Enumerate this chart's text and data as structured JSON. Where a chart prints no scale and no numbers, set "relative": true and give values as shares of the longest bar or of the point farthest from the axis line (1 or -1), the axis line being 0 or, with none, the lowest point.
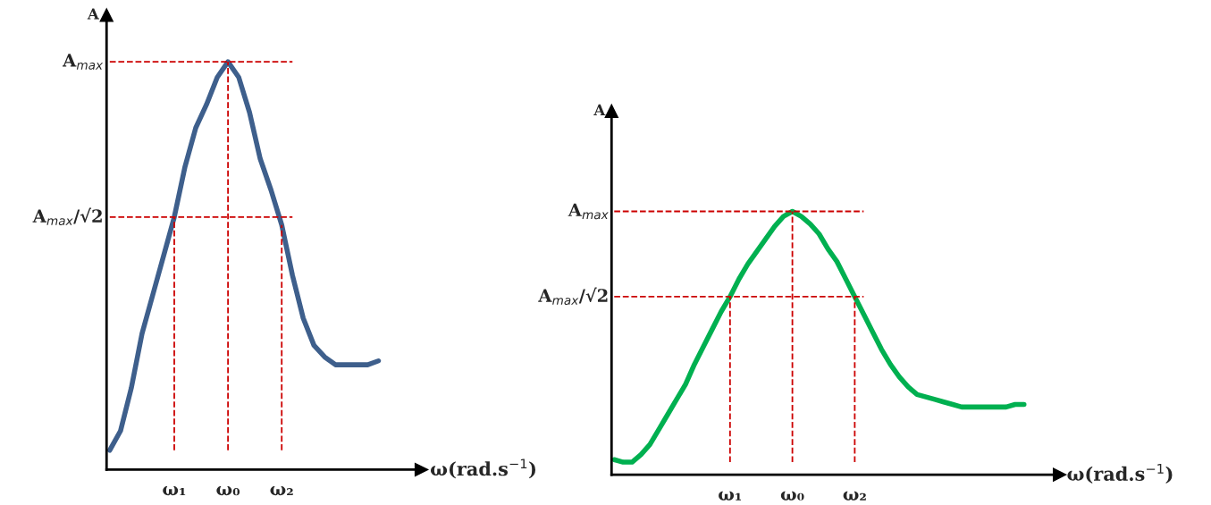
{
  "chart_data": [
    {
      "type": "line",
      "relative": true,
      "ylabel": "A",
      "xlabel": "ω(rad.s$^{−1}$)",
      "categories": [
        null,
        null,
        null,
        null,
        null,
        null,
        "ω₁",
        null,
        null,
        null,
        null,
        "ω₀",
        null,
        null,
        null,
        null,
        "ω₂",
        null,
        null,
        null,
        null,
        null,
        null,
        null,
        null,
        null
      ],
      "series": [
        {
          "color": "#3e5f8c",
          "values": [
            0,
            0.05,
            0.16,
            0.3,
            0.4,
            0.5,
            0.6,
            0.73,
            0.83,
            0.89,
            0.96,
            1.0,
            0.96,
            0.87,
            0.75,
            0.67,
            0.58,
            0.45,
            0.34,
            0.27,
            0.24,
            0.22,
            0.22,
            0.22,
            0.22,
            0.23
          ]
        }
      ],
      "ref_lines": [
        {
          "axis": "y",
          "value": 1,
          "label": "A$_{max}$",
          "color": "#cc0000",
          "line_style": "dashed"
        },
        {
          "axis": "y",
          "value": 0.6,
          "label": "A$_{max}$/√2",
          "color": "#cc0000",
          "line_style": "dashed"
        },
        {
          "axis": "x",
          "value": "ω₁",
          "color": "#cc0000",
          "line_style": "dashed"
        },
        {
          "axis": "x",
          "value": "ω₀",
          "color": "#cc0000",
          "line_style": "dashed"
        },
        {
          "axis": "x",
          "value": "ω₂",
          "color": "#cc0000",
          "line_style": "dashed"
        }
      ],
      "grid": false,
      "line_style": "solid",
      "marker": "none"
    },
    {
      "type": "line",
      "relative": true,
      "ylabel": "A",
      "xlabel": "ω(rad.s$^{−1}$)",
      "categories": [
        null,
        null,
        null,
        null,
        null,
        null,
        null,
        null,
        null,
        null,
        null,
        null,
        null,
        "ω₁",
        null,
        null,
        null,
        null,
        null,
        null,
        "ω₀",
        null,
        null,
        null,
        null,
        null,
        null,
        "ω₂",
        null,
        null,
        null,
        null,
        null,
        null,
        null,
        null,
        null,
        null,
        null,
        null,
        null,
        null,
        null,
        null,
        null,
        null,
        null
      ],
      "series": [
        {
          "color": "#00b050",
          "values": [
            0.01,
            0,
            0,
            0.03,
            0.07,
            0.13,
            0.19,
            0.25,
            0.31,
            0.39,
            0.46,
            0.53,
            0.6,
            0.66,
            0.73,
            0.79,
            0.84,
            0.89,
            0.94,
            0.98,
            1.0,
            0.98,
            0.95,
            0.91,
            0.85,
            0.8,
            0.73,
            0.66,
            0.59,
            0.52,
            0.45,
            0.39,
            0.34,
            0.3,
            0.27,
            0.26,
            0.25,
            0.24,
            0.23,
            0.22,
            0.22,
            0.22,
            0.22,
            0.22,
            0.22,
            0.23,
            0.23
          ]
        }
      ],
      "ref_lines": [
        {
          "axis": "y",
          "value": 1,
          "label": "A$_{max}$",
          "color": "#cc0000",
          "line_style": "dashed"
        },
        {
          "axis": "y",
          "value": 0.66,
          "label": "A$_{max}$/√2",
          "color": "#cc0000",
          "line_style": "dashed"
        },
        {
          "axis": "x",
          "value": "ω₁",
          "color": "#cc0000",
          "line_style": "dashed"
        },
        {
          "axis": "x",
          "value": "ω₀",
          "color": "#cc0000",
          "line_style": "dashed"
        },
        {
          "axis": "x",
          "value": "ω₂",
          "color": "#cc0000",
          "line_style": "dashed"
        }
      ],
      "grid": false,
      "line_style": "solid",
      "marker": "none"
    }
  ]
}
